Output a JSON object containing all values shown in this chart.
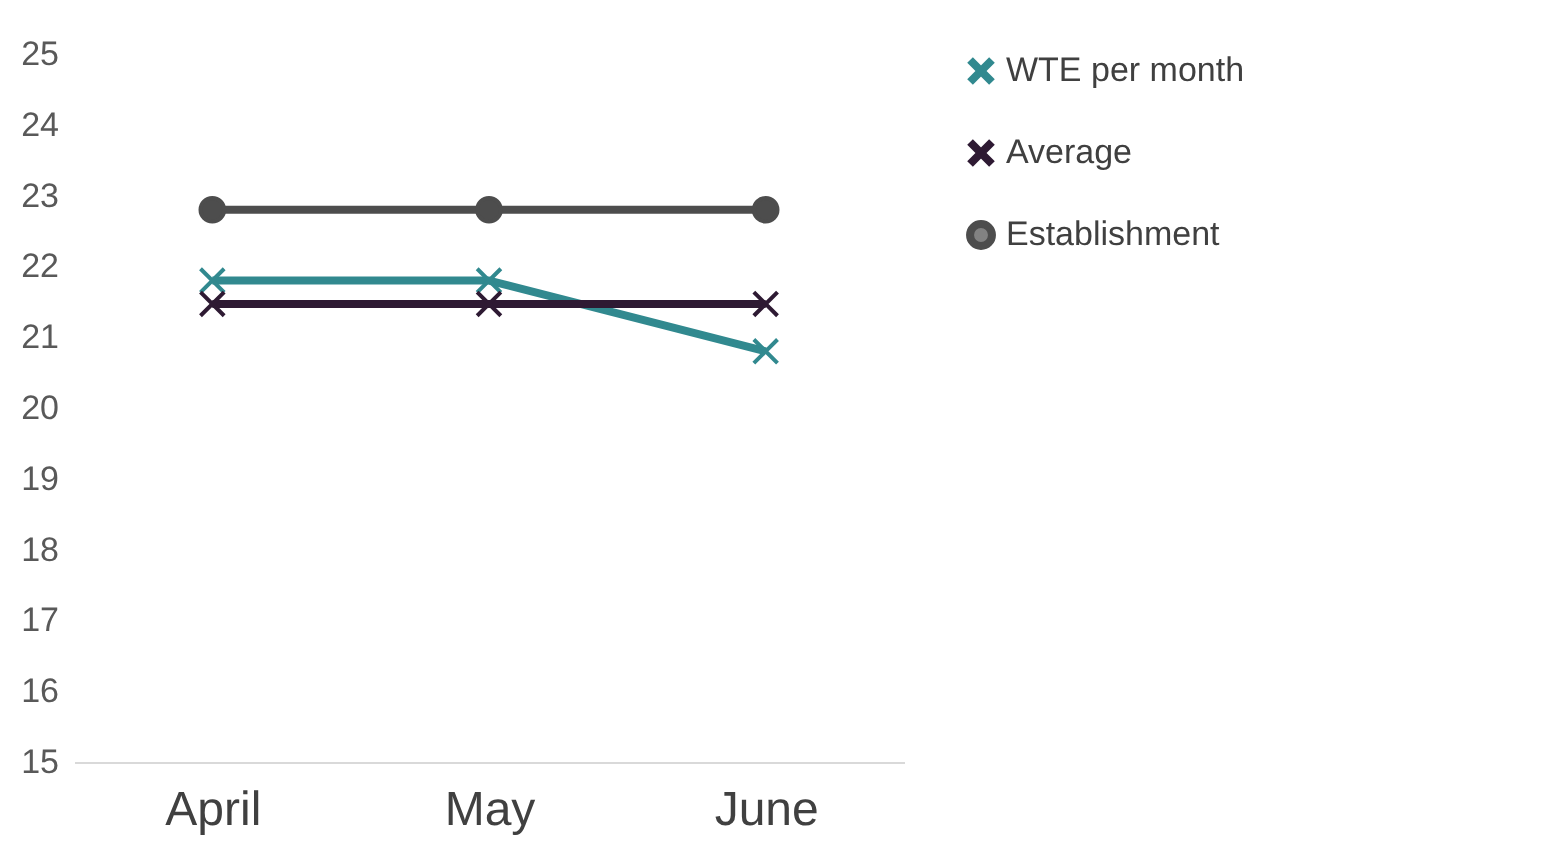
{
  "chart_data": {
    "type": "line",
    "categories": [
      "April",
      "May",
      "June"
    ],
    "series": [
      {
        "name": "WTE per month",
        "color": "#31898f",
        "values": [
          21.8,
          21.8,
          20.8
        ],
        "marker": "cross"
      },
      {
        "name": "Average",
        "color": "#2e1a33",
        "values": [
          21.47,
          21.47,
          21.47
        ],
        "marker": "cross"
      },
      {
        "name": "Establishment",
        "color": "#4d4d4d",
        "values": [
          22.8,
          22.8,
          22.8
        ],
        "marker": "circle"
      }
    ],
    "ylim": [
      15,
      25
    ],
    "yticks": [
      15,
      16,
      17,
      18,
      19,
      20,
      21,
      22,
      23,
      24,
      25
    ],
    "grid": false,
    "legend": "right"
  }
}
